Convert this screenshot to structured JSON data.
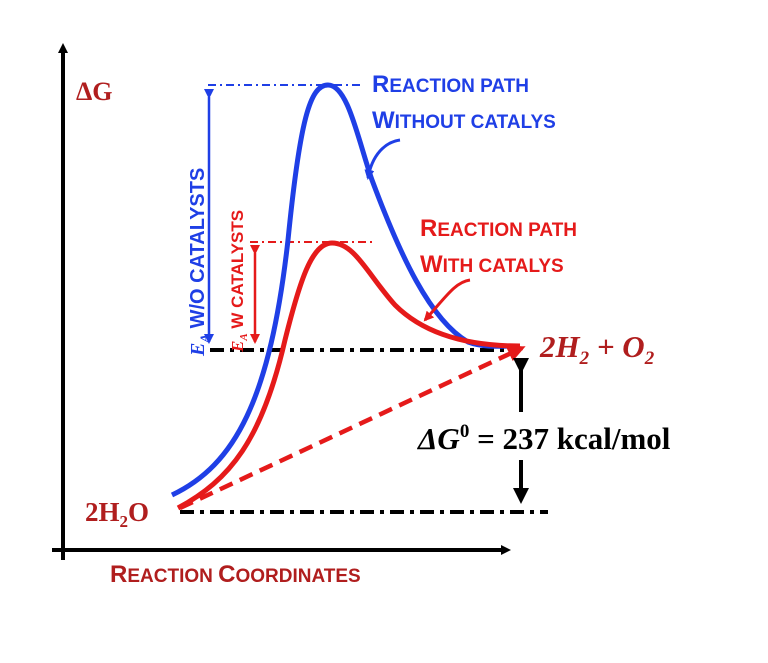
{
  "colors": {
    "blue": "#1f3fe6",
    "red": "#e51a1a",
    "darkred": "#b01e1e",
    "black": "#000000"
  },
  "axes": {
    "y_label": "ΔG",
    "x_label_big1": "R",
    "x_label_small1": "EACTION ",
    "x_label_big2": "C",
    "x_label_small2": "OORDINATES"
  },
  "states": {
    "reactant_coef": "2H",
    "reactant_sub": "2",
    "reactant_tail": "O",
    "product_a": "2H",
    "product_a_sub": "2",
    "product_plus": " + O",
    "product_b_sub": "2"
  },
  "delta_g": {
    "prefix": "ΔG",
    "sup": "0",
    "value": " = 237 kcal/mol"
  },
  "paths": {
    "uncatalyzed_line1_big": "R",
    "uncatalyzed_line1_small": "EACTION PATH",
    "uncatalyzed_line2_big": "W",
    "uncatalyzed_line2_small": "ITHOUT CATALYS",
    "catalyzed_line1_big": "R",
    "catalyzed_line1_small": "EACTION PATH",
    "catalyzed_line2_big": "W",
    "catalyzed_line2_small": "ITH CATALYS"
  },
  "activation": {
    "ea_wo_symbol": "E",
    "ea_wo_sub": "A",
    "ea_wo_text": " W/O CATALYSTS",
    "ea_w_symbol": "E",
    "ea_w_sub": "A",
    "ea_w_text": " W CATALYSTS"
  }
}
